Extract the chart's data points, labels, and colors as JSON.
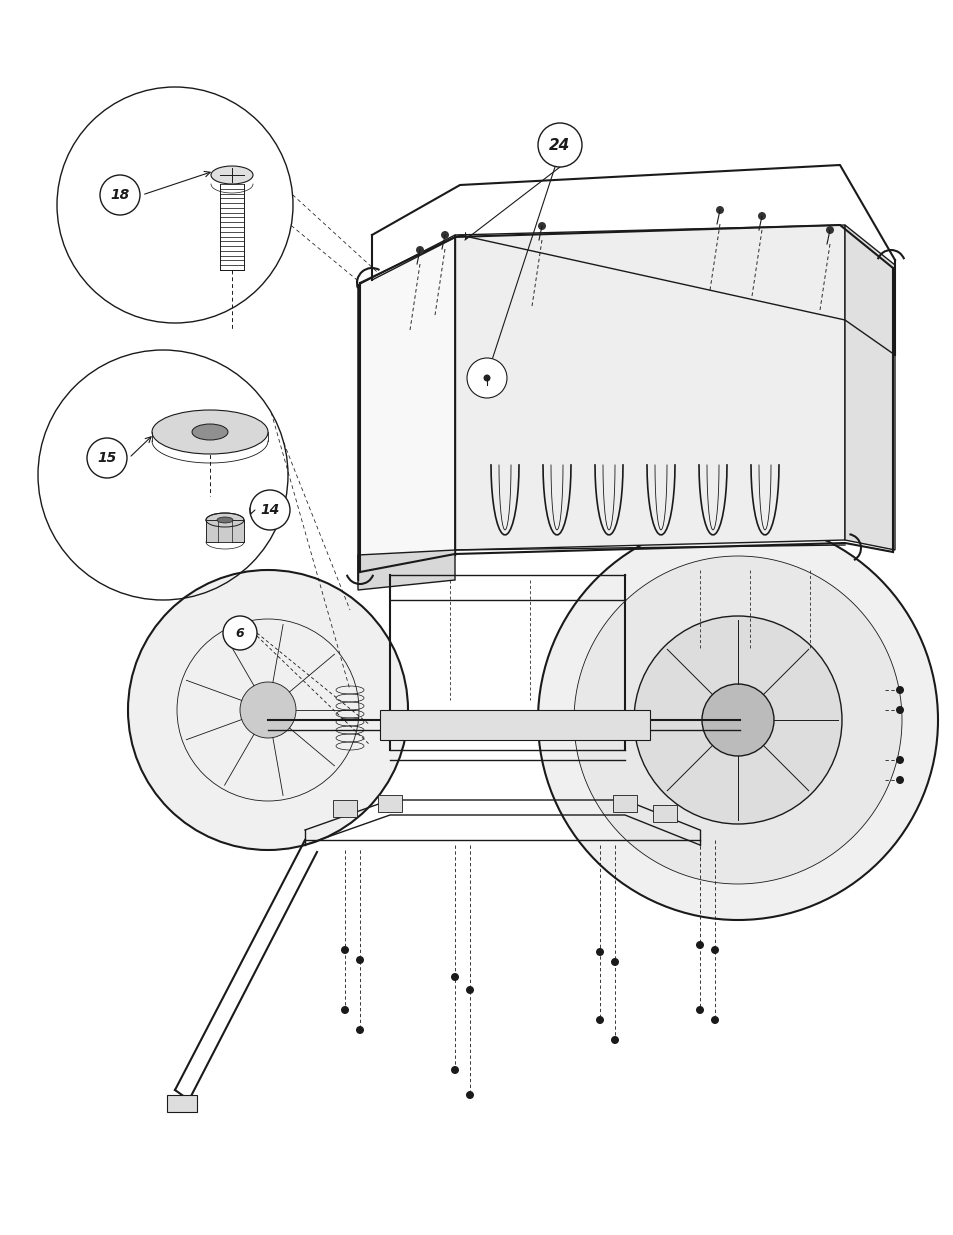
{
  "bg_color": "#ffffff",
  "line_color": "#1a1a1a",
  "figsize": [
    9.54,
    12.35
  ],
  "dpi": 100,
  "lw_thin": 0.6,
  "lw_med": 1.0,
  "lw_thick": 1.5,
  "lw_heavy": 2.0
}
